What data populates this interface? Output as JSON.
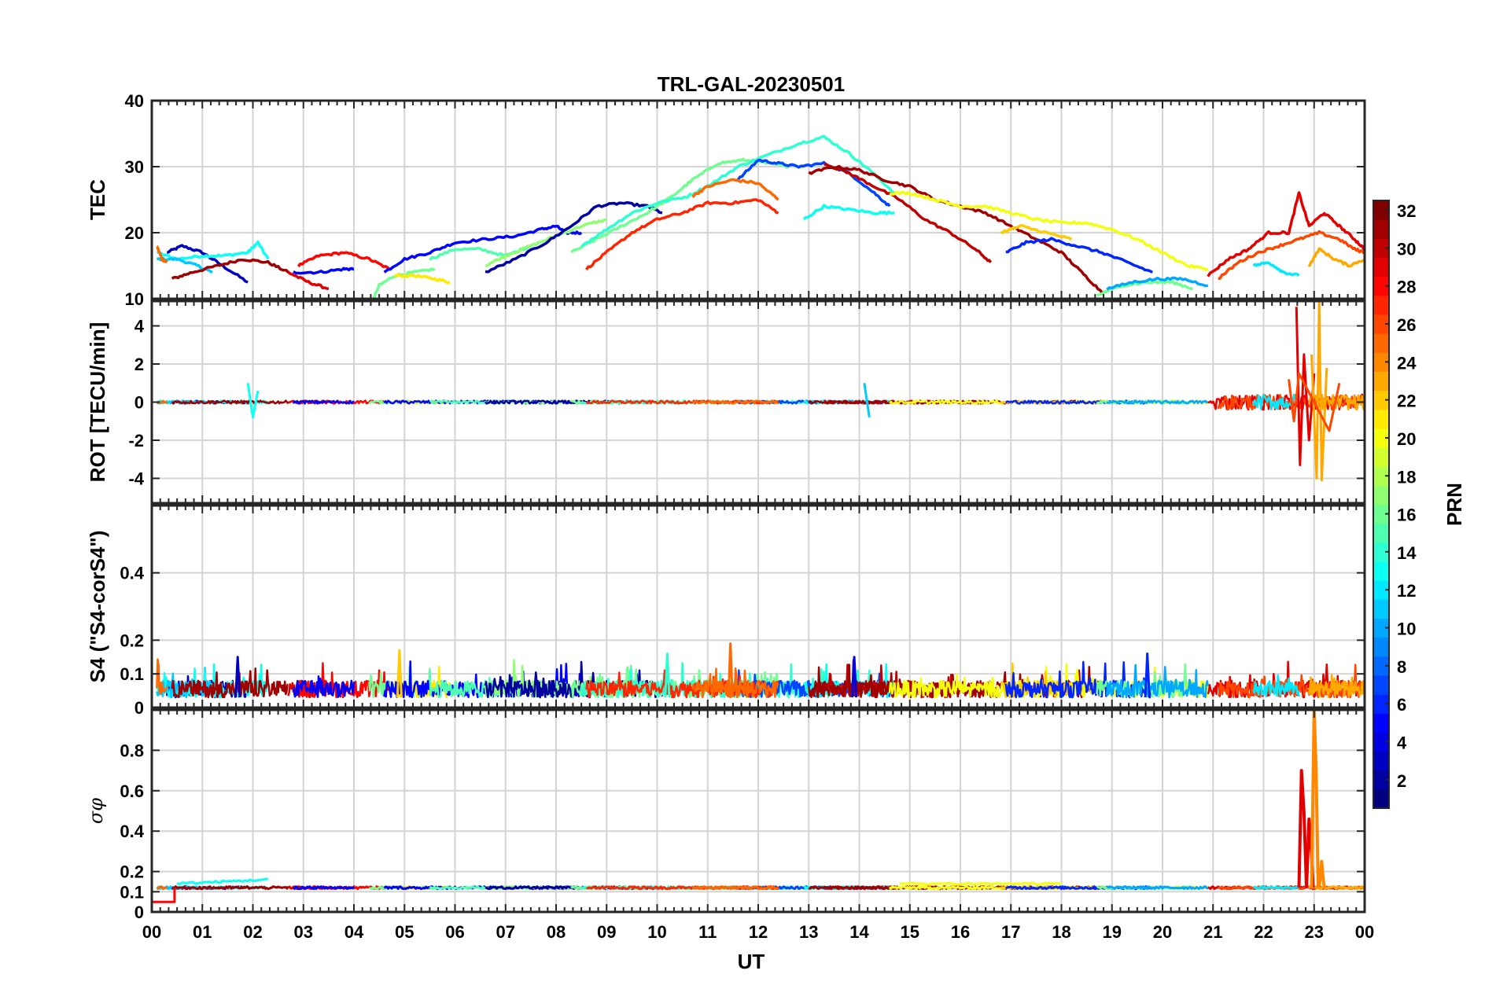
{
  "chart_data": {
    "title": "TRL-GAL-20230501",
    "xlabel": "UT",
    "x_ticks": [
      "00",
      "01",
      "02",
      "03",
      "04",
      "05",
      "06",
      "07",
      "08",
      "09",
      "10",
      "11",
      "12",
      "13",
      "14",
      "15",
      "16",
      "17",
      "18",
      "19",
      "20",
      "21",
      "22",
      "23",
      "00"
    ],
    "xlim": [
      0,
      24
    ],
    "grid": true,
    "colorbar": {
      "label": "PRN",
      "range": [
        1,
        32
      ],
      "ticks": [
        "2",
        "4",
        "6",
        "8",
        "10",
        "12",
        "14",
        "16",
        "18",
        "20",
        "22",
        "24",
        "26",
        "28",
        "30",
        "32"
      ],
      "colormap": "jet"
    },
    "panels": [
      {
        "type": "line",
        "ylabel": "TEC",
        "ylim": [
          10,
          40
        ],
        "yticks": [
          "10",
          "20",
          "30",
          "40"
        ],
        "series": [
          {
            "prn": 3,
            "x": [
              0.3,
              0.6,
              1.0,
              1.4,
              1.9
            ],
            "y": [
              17,
              18,
              17,
              15,
              12.5
            ]
          },
          {
            "prn": 13,
            "x": [
              0.1,
              0.5,
              1.0,
              1.4,
              1.9,
              2.1,
              2.3
            ],
            "y": [
              17,
              16,
              16.5,
              16.5,
              17,
              18.5,
              16
            ]
          },
          {
            "prn": 11,
            "x": [
              0.1,
              0.5,
              0.9,
              1.2
            ],
            "y": [
              16,
              16,
              15,
              14
            ]
          },
          {
            "prn": 31,
            "x": [
              0.4,
              0.8,
              1.3,
              1.8,
              2.3,
              2.7
            ],
            "y": [
              13,
              14,
              15,
              16,
              15.5,
              14
            ]
          },
          {
            "prn": 25,
            "x": [
              0.1,
              0.2,
              0.3
            ],
            "y": [
              18,
              16,
              15.5
            ]
          },
          {
            "prn": 29,
            "x": [
              2.7,
              3.1,
              3.5
            ],
            "y": [
              14,
              12.5,
              11.5
            ]
          },
          {
            "prn": 28,
            "x": [
              2.9,
              3.3,
              3.8,
              4.3,
              4.7
            ],
            "y": [
              15,
              16.5,
              17,
              16,
              14.5
            ]
          },
          {
            "prn": 5,
            "x": [
              2.8,
              3.3,
              3.8,
              4.0
            ],
            "y": [
              14,
              14,
              14.5,
              14.5
            ]
          },
          {
            "prn": 16,
            "x": [
              4.3,
              4.5,
              4.8,
              5.2,
              5.6
            ],
            "y": [
              8.5,
              12,
              13.5,
              14,
              14.5
            ]
          },
          {
            "prn": 21,
            "x": [
              4.8,
              5.2,
              5.6,
              5.9
            ],
            "y": [
              13.5,
              13.5,
              13,
              12.5
            ]
          },
          {
            "prn": 5,
            "x": [
              4.6,
              5.0,
              5.5,
              6.0,
              6.6,
              7.2,
              7.7,
              8.0,
              8.2,
              8.5
            ],
            "y": [
              14,
              16,
              17,
              18.5,
              19,
              19.5,
              20.5,
              21,
              20,
              20
            ]
          },
          {
            "prn": 15,
            "x": [
              5.5,
              6.0,
              6.5,
              7.0,
              7.5
            ],
            "y": [
              16,
              17.5,
              17.5,
              16.5,
              18
            ]
          },
          {
            "prn": 17,
            "x": [
              6.6,
              7.0,
              7.5,
              8.0,
              8.5,
              9.0
            ],
            "y": [
              15,
              16.5,
              18,
              19.5,
              21,
              22
            ]
          },
          {
            "prn": 2,
            "x": [
              6.6,
              7.2,
              7.8,
              8.3,
              8.8,
              9.3,
              9.8,
              10.1
            ],
            "y": [
              14,
              16,
              18.5,
              21,
              24,
              24.5,
              24,
              23
            ]
          },
          {
            "prn": 16,
            "x": [
              8.3,
              8.8,
              9.3,
              9.8,
              10.3,
              10.7,
              11.2,
              11.7,
              12.2,
              12.6
            ],
            "y": [
              17,
              19,
              21,
              23,
              25.5,
              28,
              30.5,
              31,
              30.5,
              30
            ]
          },
          {
            "prn": 14,
            "x": [
              8.5,
              9.0,
              9.5,
              10.0,
              10.6,
              11.1,
              11.6,
              12.1,
              12.8,
              13.3,
              13.8,
              14.2,
              14.7
            ],
            "y": [
              18,
              20.5,
              23,
              24.5,
              25.5,
              27.5,
              30,
              31.5,
              33.5,
              34.5,
              32,
              29.5,
              26
            ]
          },
          {
            "prn": 7,
            "x": [
              11.6,
              12.0,
              12.4,
              12.8,
              13.3,
              13.8,
              14.3,
              14.6
            ],
            "y": [
              28,
              31,
              30.5,
              30,
              30.5,
              29,
              26,
              24
            ]
          },
          {
            "prn": 27,
            "x": [
              8.6,
              9.0,
              9.5,
              10.0,
              10.5,
              11.0,
              11.5,
              12.0,
              12.4
            ],
            "y": [
              14.5,
              17,
              20,
              22,
              23,
              24.5,
              24.5,
              25,
              23
            ]
          },
          {
            "prn": 25,
            "x": [
              10.7,
              11.0,
              11.5,
              12.0,
              12.4
            ],
            "y": [
              25.5,
              27,
              28,
              27.5,
              25
            ]
          },
          {
            "prn": 13,
            "x": [
              12.9,
              13.3,
              13.8,
              14.3,
              14.7
            ],
            "y": [
              22,
              24,
              23.5,
              23,
              23
            ]
          },
          {
            "prn": 30,
            "x": [
              13.3,
              13.8,
              14.3,
              14.8,
              15.3,
              15.8,
              16.3,
              16.6
            ],
            "y": [
              30.5,
              29,
              27,
              25,
              22,
              20,
              17.5,
              15.5
            ]
          },
          {
            "prn": 31,
            "x": [
              13.0,
              13.5,
              14.0,
              14.5,
              15.0,
              15.5,
              16.0,
              16.5,
              17.0,
              17.5,
              18.0,
              18.4,
              18.8
            ],
            "y": [
              29,
              30,
              29.5,
              28,
              27,
              25,
              24,
              23,
              21,
              19,
              17,
              14,
              11
            ]
          },
          {
            "prn": 20,
            "x": [
              14.6,
              15.0,
              15.5,
              16.0,
              16.5,
              17.0,
              17.5,
              18.0,
              18.5,
              19.0,
              19.5,
              20.0,
              20.5,
              20.9
            ],
            "y": [
              26,
              26,
              25,
              24,
              24,
              23,
              22,
              21.5,
              21.5,
              20.5,
              19,
              17,
              15,
              14.5
            ]
          },
          {
            "prn": 22,
            "x": [
              16.8,
              17.2,
              17.7,
              18.2
            ],
            "y": [
              20,
              21,
              20,
              19
            ]
          },
          {
            "prn": 6,
            "x": [
              16.9,
              17.3,
              17.8,
              18.3,
              18.8,
              19.3,
              19.8
            ],
            "y": [
              17,
              18.5,
              19,
              18,
              17,
              15.5,
              14
            ]
          },
          {
            "prn": 16,
            "x": [
              18.7,
              19.2,
              19.7,
              20.2,
              20.6
            ],
            "y": [
              10.5,
              12,
              12.5,
              12.5,
              11.5
            ]
          },
          {
            "prn": 10,
            "x": [
              18.9,
              19.4,
              19.9,
              20.4,
              20.9
            ],
            "y": [
              11.5,
              12.5,
              13,
              13,
              12
            ]
          },
          {
            "prn": 29,
            "x": [
              20.9,
              21.3,
              21.7,
              22.1,
              22.5,
              22.7,
              22.9,
              23.2,
              23.5,
              23.8,
              24.0
            ],
            "y": [
              13.5,
              16,
              17.5,
              20,
              20,
              26,
              21,
              23,
              21,
              19,
              17.5
            ]
          },
          {
            "prn": 26,
            "x": [
              21.1,
              21.5,
              21.9,
              22.3,
              22.7,
              23.1,
              23.5,
              23.8,
              24.0
            ],
            "y": [
              13,
              15.5,
              17,
              18,
              19,
              20,
              19,
              17.5,
              17
            ]
          },
          {
            "prn": 23,
            "x": [
              22.9,
              23.1,
              23.4,
              23.7,
              24.0
            ],
            "y": [
              15,
              17.5,
              16,
              15,
              16
            ]
          },
          {
            "prn": 12,
            "x": [
              21.8,
              22.1,
              22.4,
              22.7
            ],
            "y": [
              15,
              15.5,
              14,
              13.5
            ]
          }
        ]
      },
      {
        "type": "line",
        "ylabel": "ROT [TECU/min]",
        "ylim": [
          -5.3,
          5.3
        ],
        "yticks": [
          "4",
          "2",
          "0",
          "-2",
          "-4"
        ],
        "noise_level": 0.08,
        "spikes": [
          {
            "prn": 13,
            "x": [
              1.9,
              2.0,
              2.1
            ],
            "y": [
              1.0,
              -0.8,
              0.6
            ]
          },
          {
            "prn": 11,
            "x": [
              14.1,
              14.2
            ],
            "y": [
              1.0,
              -0.8
            ]
          },
          {
            "prn": 29,
            "x": [
              22.65,
              22.72,
              22.8,
              22.9,
              23.0
            ],
            "y": [
              5.0,
              -3.3,
              2.5,
              -2.0,
              1.5
            ]
          },
          {
            "prn": 23,
            "x": [
              22.95,
              23.05,
              23.1,
              23.15,
              23.25
            ],
            "y": [
              2.5,
              -4.0,
              5.3,
              -4.1,
              1.8
            ]
          },
          {
            "prn": 26,
            "x": [
              22.5,
              22.6,
              22.7,
              23.3,
              23.5
            ],
            "y": [
              1.2,
              -1.0,
              1.5,
              -1.5,
              1.0
            ]
          }
        ]
      },
      {
        "type": "line",
        "ylabel": "S4 (\"S4-corS4\")",
        "ylim": [
          0,
          0.6
        ],
        "yticks": [
          "0",
          "0.1",
          "0.2",
          "0.4"
        ],
        "baseline": 0.03,
        "peaks": [
          {
            "prn": 25,
            "x": 11.45,
            "y": 0.19
          },
          {
            "prn": 22,
            "x": 4.9,
            "y": 0.17
          },
          {
            "prn": 6,
            "x": 19.7,
            "y": 0.16
          },
          {
            "prn": 14,
            "x": 10.2,
            "y": 0.16
          },
          {
            "prn": 3,
            "x": 1.7,
            "y": 0.15
          },
          {
            "prn": 4,
            "x": 13.9,
            "y": 0.15
          }
        ]
      },
      {
        "type": "line",
        "ylabel": "σφ",
        "ylim": [
          0,
          1
        ],
        "yticks": [
          "0",
          "0.1",
          "0.2",
          "0.4",
          "0.6",
          "0.8"
        ],
        "baseline": 0.12,
        "segments": [
          {
            "prn": 13,
            "x": [
              0.5,
              2.3
            ],
            "y": [
              0.14,
              0.16
            ]
          },
          {
            "prn": 20,
            "x": [
              14.8,
              18.0
            ],
            "y": [
              0.14,
              0.14
            ]
          }
        ],
        "spikes": [
          {
            "prn": 29,
            "x": [
              22.75,
              22.85
            ],
            "y": [
              0.7,
              0.12
            ]
          },
          {
            "prn": 29,
            "x": [
              22.9,
              22.98
            ],
            "y": [
              0.46,
              0.12
            ]
          },
          {
            "prn": 24,
            "x": [
              23.0,
              23.08
            ],
            "y": [
              1.0,
              0.12
            ]
          },
          {
            "prn": 24,
            "x": [
              23.15,
              23.2
            ],
            "y": [
              0.25,
              0.12
            ]
          },
          {
            "prn": 28,
            "x": [
              0.0,
              0.45
            ],
            "y": [
              0.05,
              0.05
            ]
          }
        ]
      }
    ]
  }
}
